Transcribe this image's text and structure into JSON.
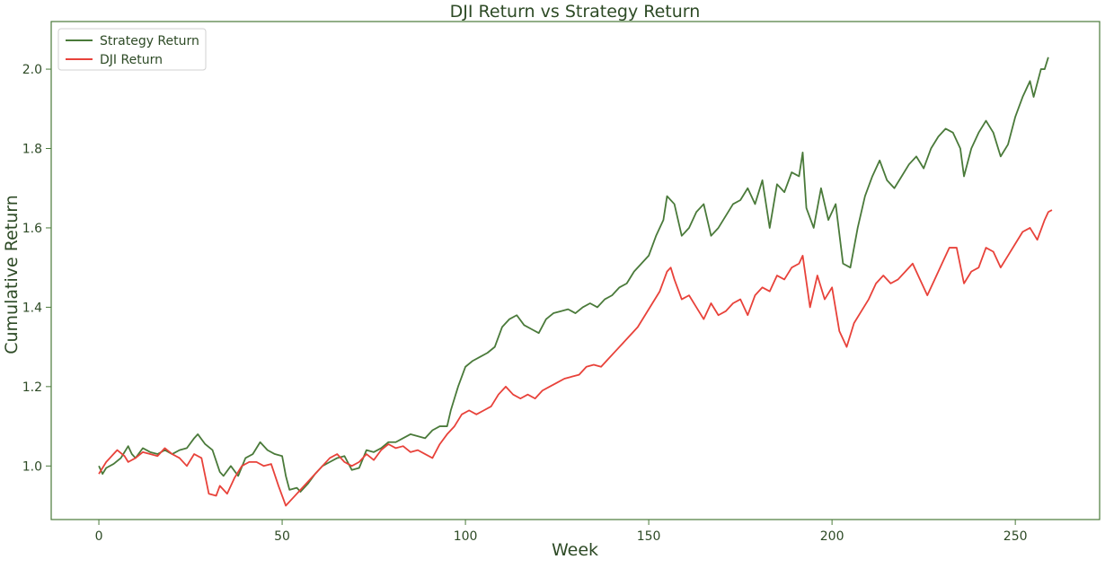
{
  "chart_data": {
    "type": "line",
    "title": "DJI Return vs Strategy Return",
    "xlabel": "Week",
    "ylabel": "Cumulative Return",
    "xlim": [
      -13,
      273
    ],
    "ylim": [
      0.865,
      2.12
    ],
    "xticks": [
      0,
      50,
      100,
      150,
      200,
      250
    ],
    "yticks": [
      1.0,
      1.2,
      1.4,
      1.6,
      1.8,
      2.0
    ],
    "ytick_labels": [
      "1.0",
      "1.2",
      "1.4",
      "1.6",
      "1.8",
      "2.0"
    ],
    "grid": false,
    "legend_position": "top-left",
    "series": [
      {
        "name": "Strategy Return",
        "color": "#4a7a3a",
        "points": [
          [
            0,
            1.0
          ],
          [
            1,
            0.98
          ],
          [
            2,
            0.995
          ],
          [
            4,
            1.005
          ],
          [
            6,
            1.02
          ],
          [
            8,
            1.05
          ],
          [
            9,
            1.03
          ],
          [
            10,
            1.02
          ],
          [
            12,
            1.045
          ],
          [
            14,
            1.035
          ],
          [
            16,
            1.03
          ],
          [
            18,
            1.04
          ],
          [
            20,
            1.03
          ],
          [
            22,
            1.04
          ],
          [
            24,
            1.045
          ],
          [
            26,
            1.07
          ],
          [
            27,
            1.08
          ],
          [
            29,
            1.055
          ],
          [
            31,
            1.04
          ],
          [
            33,
            0.985
          ],
          [
            34,
            0.975
          ],
          [
            36,
            1.0
          ],
          [
            38,
            0.975
          ],
          [
            40,
            1.02
          ],
          [
            42,
            1.03
          ],
          [
            44,
            1.06
          ],
          [
            46,
            1.04
          ],
          [
            48,
            1.03
          ],
          [
            50,
            1.025
          ],
          [
            51,
            0.975
          ],
          [
            52,
            0.94
          ],
          [
            54,
            0.945
          ],
          [
            55,
            0.935
          ],
          [
            57,
            0.955
          ],
          [
            59,
            0.98
          ],
          [
            61,
            1.0
          ],
          [
            63,
            1.01
          ],
          [
            65,
            1.02
          ],
          [
            67,
            1.025
          ],
          [
            69,
            0.99
          ],
          [
            71,
            0.995
          ],
          [
            73,
            1.04
          ],
          [
            75,
            1.035
          ],
          [
            77,
            1.045
          ],
          [
            79,
            1.06
          ],
          [
            81,
            1.06
          ],
          [
            83,
            1.07
          ],
          [
            85,
            1.08
          ],
          [
            87,
            1.075
          ],
          [
            89,
            1.07
          ],
          [
            91,
            1.09
          ],
          [
            93,
            1.1
          ],
          [
            95,
            1.1
          ],
          [
            96,
            1.14
          ],
          [
            98,
            1.2
          ],
          [
            100,
            1.25
          ],
          [
            102,
            1.265
          ],
          [
            104,
            1.275
          ],
          [
            106,
            1.285
          ],
          [
            108,
            1.3
          ],
          [
            110,
            1.35
          ],
          [
            112,
            1.37
          ],
          [
            114,
            1.38
          ],
          [
            116,
            1.355
          ],
          [
            118,
            1.345
          ],
          [
            120,
            1.335
          ],
          [
            122,
            1.37
          ],
          [
            124,
            1.385
          ],
          [
            126,
            1.39
          ],
          [
            128,
            1.395
          ],
          [
            130,
            1.385
          ],
          [
            132,
            1.4
          ],
          [
            134,
            1.41
          ],
          [
            136,
            1.4
          ],
          [
            138,
            1.42
          ],
          [
            140,
            1.43
          ],
          [
            142,
            1.45
          ],
          [
            144,
            1.46
          ],
          [
            146,
            1.49
          ],
          [
            148,
            1.51
          ],
          [
            150,
            1.53
          ],
          [
            152,
            1.58
          ],
          [
            154,
            1.62
          ],
          [
            155,
            1.68
          ],
          [
            157,
            1.66
          ],
          [
            159,
            1.58
          ],
          [
            161,
            1.6
          ],
          [
            163,
            1.64
          ],
          [
            165,
            1.66
          ],
          [
            167,
            1.58
          ],
          [
            169,
            1.6
          ],
          [
            171,
            1.63
          ],
          [
            173,
            1.66
          ],
          [
            175,
            1.67
          ],
          [
            177,
            1.7
          ],
          [
            179,
            1.66
          ],
          [
            181,
            1.72
          ],
          [
            183,
            1.6
          ],
          [
            185,
            1.71
          ],
          [
            187,
            1.69
          ],
          [
            189,
            1.74
          ],
          [
            191,
            1.73
          ],
          [
            192,
            1.79
          ],
          [
            193,
            1.65
          ],
          [
            195,
            1.6
          ],
          [
            197,
            1.7
          ],
          [
            199,
            1.62
          ],
          [
            201,
            1.66
          ],
          [
            203,
            1.51
          ],
          [
            205,
            1.5
          ],
          [
            207,
            1.6
          ],
          [
            209,
            1.68
          ],
          [
            211,
            1.73
          ],
          [
            213,
            1.77
          ],
          [
            215,
            1.72
          ],
          [
            217,
            1.7
          ],
          [
            219,
            1.73
          ],
          [
            221,
            1.76
          ],
          [
            223,
            1.78
          ],
          [
            225,
            1.75
          ],
          [
            227,
            1.8
          ],
          [
            229,
            1.83
          ],
          [
            231,
            1.85
          ],
          [
            233,
            1.84
          ],
          [
            235,
            1.8
          ],
          [
            236,
            1.73
          ],
          [
            238,
            1.8
          ],
          [
            240,
            1.84
          ],
          [
            242,
            1.87
          ],
          [
            244,
            1.84
          ],
          [
            246,
            1.78
          ],
          [
            248,
            1.81
          ],
          [
            250,
            1.88
          ],
          [
            252,
            1.93
          ],
          [
            254,
            1.97
          ],
          [
            255,
            1.93
          ],
          [
            257,
            2.0
          ],
          [
            258,
            2.0
          ],
          [
            259,
            2.03
          ]
        ]
      },
      {
        "name": "DJI Return",
        "color": "#e8423a",
        "points": [
          [
            0,
            0.98
          ],
          [
            2,
            1.01
          ],
          [
            4,
            1.03
          ],
          [
            5,
            1.04
          ],
          [
            7,
            1.025
          ],
          [
            8,
            1.01
          ],
          [
            10,
            1.02
          ],
          [
            12,
            1.035
          ],
          [
            14,
            1.03
          ],
          [
            16,
            1.025
          ],
          [
            18,
            1.045
          ],
          [
            20,
            1.03
          ],
          [
            22,
            1.02
          ],
          [
            24,
            1.0
          ],
          [
            26,
            1.03
          ],
          [
            28,
            1.02
          ],
          [
            30,
            0.93
          ],
          [
            32,
            0.925
          ],
          [
            33,
            0.95
          ],
          [
            35,
            0.93
          ],
          [
            37,
            0.97
          ],
          [
            39,
            1.0
          ],
          [
            41,
            1.01
          ],
          [
            43,
            1.01
          ],
          [
            45,
            1.0
          ],
          [
            47,
            1.005
          ],
          [
            49,
            0.95
          ],
          [
            51,
            0.9
          ],
          [
            53,
            0.92
          ],
          [
            55,
            0.94
          ],
          [
            57,
            0.96
          ],
          [
            59,
            0.98
          ],
          [
            61,
            1.0
          ],
          [
            63,
            1.02
          ],
          [
            65,
            1.03
          ],
          [
            67,
            1.01
          ],
          [
            69,
            1.0
          ],
          [
            71,
            1.01
          ],
          [
            73,
            1.03
          ],
          [
            75,
            1.015
          ],
          [
            77,
            1.04
          ],
          [
            79,
            1.055
          ],
          [
            81,
            1.045
          ],
          [
            83,
            1.05
          ],
          [
            85,
            1.035
          ],
          [
            87,
            1.04
          ],
          [
            89,
            1.03
          ],
          [
            91,
            1.02
          ],
          [
            93,
            1.055
          ],
          [
            95,
            1.08
          ],
          [
            97,
            1.1
          ],
          [
            99,
            1.13
          ],
          [
            101,
            1.14
          ],
          [
            103,
            1.13
          ],
          [
            105,
            1.14
          ],
          [
            107,
            1.15
          ],
          [
            109,
            1.18
          ],
          [
            111,
            1.2
          ],
          [
            113,
            1.18
          ],
          [
            115,
            1.17
          ],
          [
            117,
            1.18
          ],
          [
            119,
            1.17
          ],
          [
            121,
            1.19
          ],
          [
            123,
            1.2
          ],
          [
            125,
            1.21
          ],
          [
            127,
            1.22
          ],
          [
            129,
            1.225
          ],
          [
            131,
            1.23
          ],
          [
            133,
            1.25
          ],
          [
            135,
            1.255
          ],
          [
            137,
            1.25
          ],
          [
            139,
            1.27
          ],
          [
            141,
            1.29
          ],
          [
            143,
            1.31
          ],
          [
            145,
            1.33
          ],
          [
            147,
            1.35
          ],
          [
            149,
            1.38
          ],
          [
            151,
            1.41
          ],
          [
            153,
            1.44
          ],
          [
            155,
            1.49
          ],
          [
            156,
            1.5
          ],
          [
            157,
            1.47
          ],
          [
            159,
            1.42
          ],
          [
            161,
            1.43
          ],
          [
            163,
            1.4
          ],
          [
            165,
            1.37
          ],
          [
            167,
            1.41
          ],
          [
            169,
            1.38
          ],
          [
            171,
            1.39
          ],
          [
            173,
            1.41
          ],
          [
            175,
            1.42
          ],
          [
            177,
            1.38
          ],
          [
            179,
            1.43
          ],
          [
            181,
            1.45
          ],
          [
            183,
            1.44
          ],
          [
            185,
            1.48
          ],
          [
            187,
            1.47
          ],
          [
            189,
            1.5
          ],
          [
            191,
            1.51
          ],
          [
            192,
            1.53
          ],
          [
            194,
            1.4
          ],
          [
            196,
            1.48
          ],
          [
            198,
            1.42
          ],
          [
            200,
            1.45
          ],
          [
            202,
            1.34
          ],
          [
            204,
            1.3
          ],
          [
            206,
            1.36
          ],
          [
            208,
            1.39
          ],
          [
            210,
            1.42
          ],
          [
            212,
            1.46
          ],
          [
            214,
            1.48
          ],
          [
            216,
            1.46
          ],
          [
            218,
            1.47
          ],
          [
            220,
            1.49
          ],
          [
            222,
            1.51
          ],
          [
            224,
            1.47
          ],
          [
            226,
            1.43
          ],
          [
            228,
            1.47
          ],
          [
            230,
            1.51
          ],
          [
            232,
            1.55
          ],
          [
            234,
            1.55
          ],
          [
            236,
            1.46
          ],
          [
            238,
            1.49
          ],
          [
            240,
            1.5
          ],
          [
            242,
            1.55
          ],
          [
            244,
            1.54
          ],
          [
            246,
            1.5
          ],
          [
            248,
            1.53
          ],
          [
            250,
            1.56
          ],
          [
            252,
            1.59
          ],
          [
            254,
            1.6
          ],
          [
            256,
            1.57
          ],
          [
            258,
            1.62
          ],
          [
            259,
            1.64
          ],
          [
            260,
            1.645
          ]
        ]
      }
    ]
  }
}
